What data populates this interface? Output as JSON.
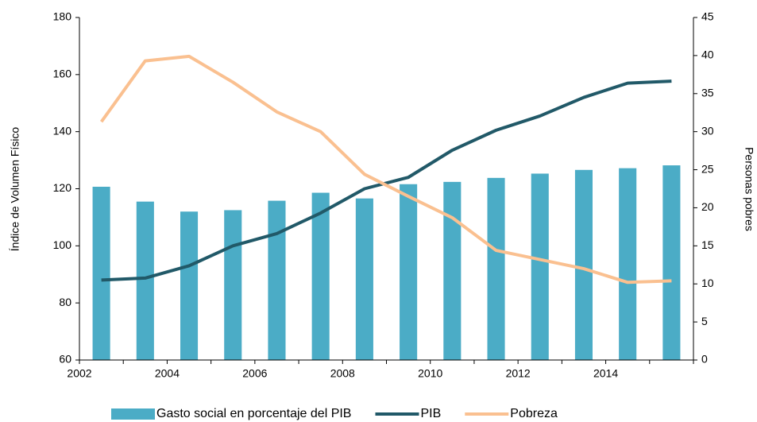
{
  "chart_data": {
    "type": "bar_line",
    "categories": [
      "2002",
      null,
      "2004",
      null,
      "2006",
      null,
      "2008",
      null,
      "2010",
      null,
      "2012",
      null,
      "2014",
      null
    ],
    "ylabel": "Índice de Volumen Físico",
    "y2label": "Personas  pobres",
    "ylim": [
      60,
      180
    ],
    "yticks": [
      60,
      80,
      100,
      120,
      140,
      160,
      180
    ],
    "y2lim": [
      0,
      45
    ],
    "y2ticks": [
      0,
      5,
      10,
      15,
      20,
      25,
      30,
      35,
      40,
      45
    ],
    "series": [
      {
        "name": "Gasto social en porcentaje del PIB",
        "kind": "bar",
        "color": "#4bacc6",
        "values": [
          120.7,
          115.5,
          112,
          112.5,
          115.8,
          118.6,
          116.6,
          121.6,
          122.4,
          123.8,
          125.3,
          126.6,
          127.2,
          128.2
        ]
      },
      {
        "name": "PIB",
        "kind": "line",
        "color": "#215968",
        "values": [
          88,
          88.7,
          93,
          100,
          104.3,
          111.5,
          120,
          124,
          133.5,
          140.5,
          145.5,
          152,
          157,
          157.7
        ]
      },
      {
        "name": "Pobreza",
        "kind": "line",
        "axis": "y2",
        "color": "#fac090",
        "values": [
          31.3,
          39.3,
          39.9,
          36.5,
          32.6,
          30,
          24.4,
          21.5,
          18.7,
          14.4,
          13.2,
          12,
          10.2,
          10.4
        ]
      }
    ]
  }
}
